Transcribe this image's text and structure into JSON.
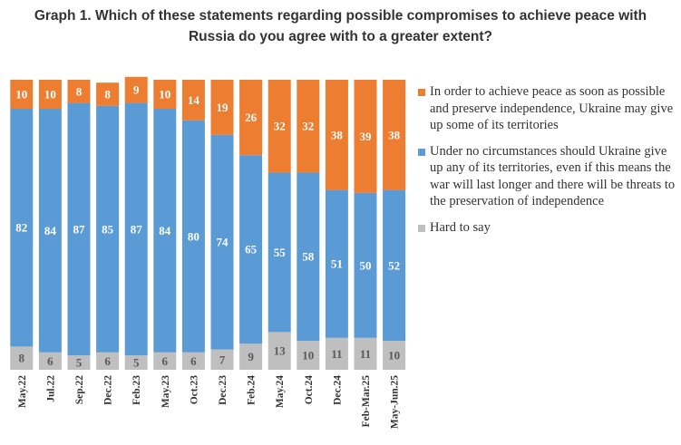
{
  "title_line1": "Graph 1. Which of these statements regarding possible compromises to achieve peace with",
  "title_line2": "Russia do you agree with to a greater extent?",
  "colors": {
    "give_up": "#ed7d31",
    "no_give_up": "#5b9bd5",
    "hard": "#bfbfbf"
  },
  "chart_data": {
    "type": "bar",
    "stacked": true,
    "categories": [
      "May.22",
      "Jul.22",
      "Sep.22",
      "Dec.22",
      "Feb.23",
      "May.23",
      "Oct.23",
      "Dec.23",
      "Feb.24",
      "May.24",
      "Oct.24",
      "Dec.24",
      "Feb-Mar.25",
      "May-Jun.25"
    ],
    "series": [
      {
        "name": "Hard to say",
        "values": [
          8,
          6,
          5,
          6,
          5,
          6,
          6,
          7,
          9,
          13,
          10,
          11,
          11,
          10
        ]
      },
      {
        "name": "Under no circumstances should Ukraine give up any of its territories, even if this means the war will last longer and there will be threats to the preservation of independence",
        "values": [
          82,
          84,
          87,
          85,
          87,
          84,
          80,
          74,
          65,
          55,
          58,
          51,
          50,
          52
        ]
      },
      {
        "name": "In order to achieve peace as soon as possible and preserve independence, Ukraine may give up some of its territories",
        "values": [
          10,
          10,
          8,
          8,
          9,
          10,
          14,
          19,
          26,
          32,
          32,
          38,
          39,
          38
        ]
      }
    ],
    "ylim": [
      0,
      100
    ],
    "grid": false,
    "legend_position": "right"
  }
}
